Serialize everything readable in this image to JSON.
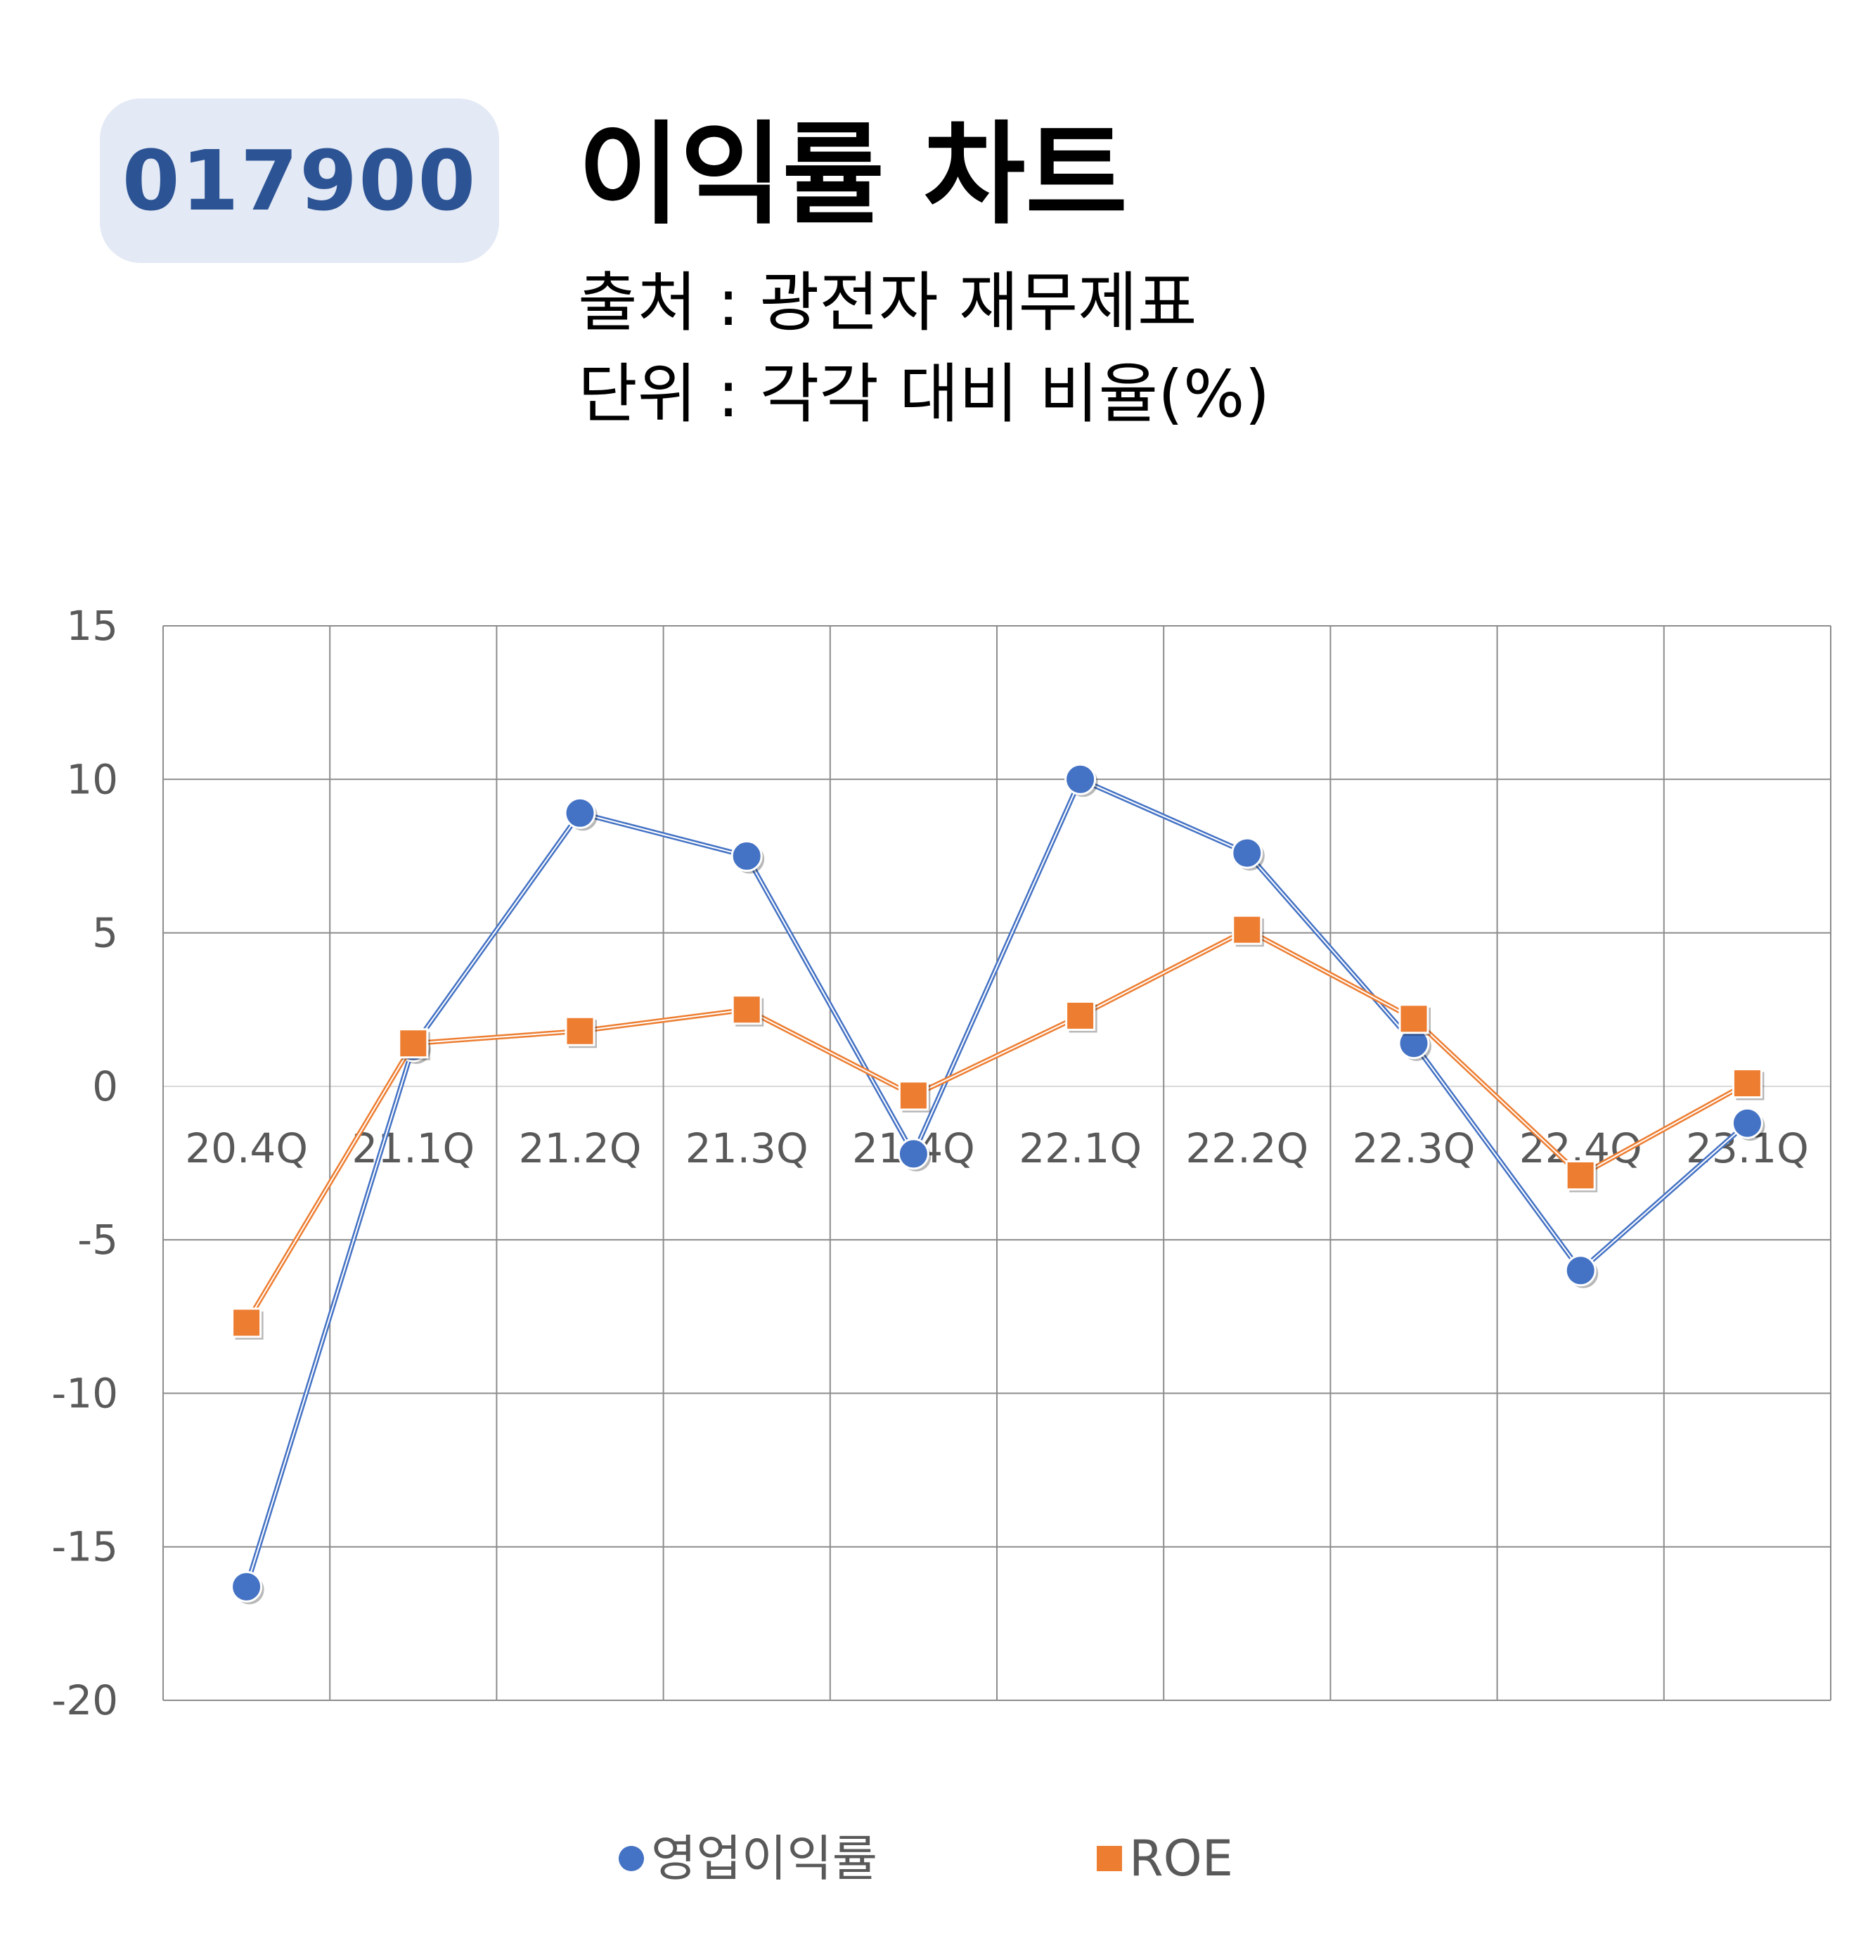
{
  "header": {
    "code": "017900",
    "title": "이익률 차트",
    "source": "출처 : 광전자 재무제표",
    "unit": "단위 : 각각 대비 비율(%)"
  },
  "chart_data": {
    "type": "line",
    "categories": [
      "20.4Q",
      "21.1Q",
      "21.2Q",
      "21.3Q",
      "21.4Q",
      "22.1Q",
      "22.2Q",
      "22.3Q",
      "22.4Q",
      "23.1Q"
    ],
    "ylim": [
      -20,
      15
    ],
    "yticks": [
      15,
      10,
      5,
      0,
      -5,
      -10,
      -15,
      -20
    ],
    "grid": true,
    "legend_position": "bottom",
    "series": [
      {
        "name": "영업이익률",
        "marker": "circle",
        "color": "#4472c4",
        "values": [
          -16.3,
          1.3,
          8.9,
          7.5,
          -2.2,
          10.0,
          7.6,
          1.4,
          -6.0,
          -1.2
        ]
      },
      {
        "name": "ROE",
        "marker": "square",
        "color": "#ed7d31",
        "values": [
          -7.7,
          1.4,
          1.8,
          2.5,
          -0.3,
          2.3,
          5.1,
          2.2,
          -2.9,
          0.1
        ]
      }
    ]
  }
}
